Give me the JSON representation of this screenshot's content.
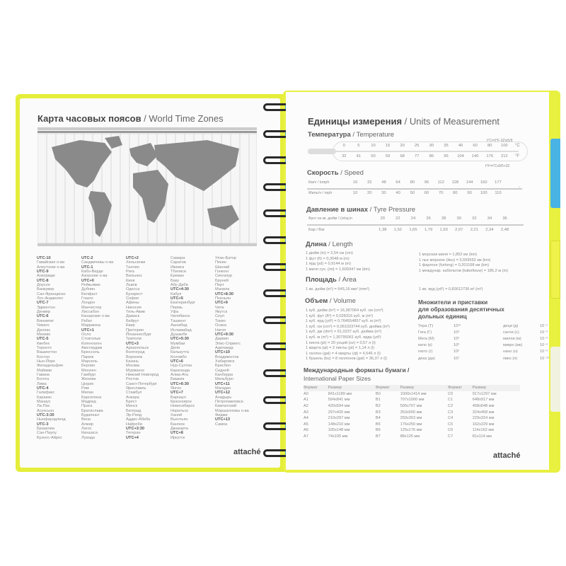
{
  "colors": {
    "cover": "#e4ee3a",
    "tab_blue": "#49b3e6",
    "tab_yellow": "#eef24a",
    "tab_light": "#f1f2e0",
    "spiral": "#2a2a2a"
  },
  "left": {
    "title_ru": "Карта часовых поясов",
    "title_en": " / World Time Zones",
    "zone_columns": [
      [
        "UTC-10",
        "Гавайские о-ва",
        "Алеутские о-ва",
        "UTC-9",
        "Анкоридж",
        "UTC-8",
        "Доусон",
        "Ванкувер",
        "Сан-Франциско",
        "Лос-Анджелес",
        "UTC-7",
        "Эдмонтон",
        "Денвер",
        "UTC-6",
        "Виннипег",
        "Чикаго",
        "Даллас",
        "Мехико",
        "UTC-5",
        "Квебек",
        "Торонто",
        "Вашингтон",
        "Бостон",
        "Нью-Йорк",
        "Филадельфия",
        "Майами",
        "Гавана",
        "Богота",
        "Лима",
        "UTC-4",
        "Галифакс",
        "Каракас",
        "Манаус",
        "Ла-Пас",
        "Асунсьон",
        "UTC-3:30",
        "Ньюфаундленд",
        "UTC-3",
        "Бразилиа",
        "Сан-Паулу",
        "Буэнос-Айрес"
      ],
      [
        "UTC-2",
        "Сандвичевы о-ва",
        "UTC-1",
        "Кабо-Верде",
        "Азорские о-ва",
        "UTC+0",
        "Рейкьявик",
        "Дублин",
        "Белфаст",
        "Глазго",
        "Лондон",
        "Манчестер",
        "Лиссабон",
        "Канарские о-ва",
        "Рабат",
        "Марракеш",
        "UTC+1",
        "Осло",
        "Стокгольм",
        "Копенгаген",
        "Амстердам",
        "Брюссель",
        "Париж",
        "Марсель",
        "Берлин",
        "Мюнхен",
        "Гамбург",
        "Женева",
        "Цюрих",
        "Рим",
        "Милан",
        "Барселона",
        "Мадрид",
        "Прага",
        "Братислава",
        "Будапешт",
        "Вена",
        "Алжир",
        "Лагос",
        "Киншаса",
        "Луанда"
      ],
      [
        "UTC+2",
        "Хельсинки",
        "Таллин",
        "Рига",
        "Вильнюс",
        "Киев",
        "Львов",
        "Одесса",
        "Бухарест",
        "София",
        "Афины",
        "Никосия",
        "Тель-Авив",
        "Дамаск",
        "Бейрут",
        "Каир",
        "Претория",
        "Йоханнесбург",
        "Триполи",
        "UTC+3",
        "Архангельск",
        "Волгоград",
        "Воронеж",
        "Казань",
        "Москва",
        "Мурманск",
        "Нижний Новгород",
        "Ростов",
        "Санкт-Петербург",
        "Ярославль",
        "Стамбул",
        "Анкара",
        "Брест",
        "Минск",
        "Белград",
        "Эр-Рияд",
        "Аддис-Абеба",
        "Найроби",
        "UTC+3:30",
        "Тегеран",
        "UTC+4"
      ],
      [
        "Самара",
        "Саратов",
        "Ижевск",
        "Тбилиси",
        "Ереван",
        "Баку",
        "Абу-Даби",
        "UTC+4:30",
        "Кабул",
        "UTC+5",
        "Екатеринбург",
        "Пермь",
        "Уфа",
        "Челябинск",
        "Ташкент",
        "Ашхабад",
        "Исламабад",
        "Душанбе",
        "UTC+5:30",
        "Мумбаи",
        "Дели",
        "Калькутта",
        "Коломбо",
        "UTC+6",
        "Нур-Султан",
        "Караганда",
        "Алма-Ата",
        "Бишкек",
        "UTC+6:30",
        "Янгон",
        "UTC+7",
        "Барнаул",
        "Красноярск",
        "Новосибирск",
        "Норильск",
        "Ханой",
        "Вьентьян",
        "Бангкок",
        "Джакарта",
        "UTC+8",
        "Иркутск"
      ],
      [
        "Улан-Батор",
        "Пекин",
        "Шанхай",
        "Гонконг",
        "Сингапур",
        "Бруней",
        "Перт",
        "Манила",
        "UTC+8:30",
        "Пхеньян",
        "UTC+9",
        "Чита",
        "Якутск",
        "Сеул",
        "Токио",
        "Осака",
        "Нагоя",
        "UTC+9:30",
        "Дарвин",
        "Элис-Спрингс",
        "Аделаида",
        "UTC+10",
        "Владивосток",
        "Хабаровск",
        "Брисбен",
        "Сидней",
        "Канберра",
        "Мельбурн",
        "UTC+11",
        "Магадан",
        "UTC+12",
        "Анадырь",
        "Петропавловск-",
        "Камчатский",
        "Маршалловы о-ва",
        "Фиджи",
        "UTC+13",
        "Самоа"
      ]
    ],
    "logo": "attaché"
  },
  "right": {
    "title_ru": "Единицы измерения",
    "title_en": " / Units of Measurement",
    "temperature": {
      "label_ru": "Температура",
      "label_en": " / Temperature",
      "formula_c": "t°C=(t°F-32)x5/9",
      "formula_f": "t°F=t°Cx9/5+32",
      "unit_c": "°C",
      "unit_f": "°F",
      "celsius": [
        "0",
        "5",
        "10",
        "15",
        "20",
        "25",
        "30",
        "35",
        "40",
        "60",
        "80",
        "100"
      ],
      "fahrenheit": [
        "32",
        "41",
        "50",
        "59",
        "68",
        "77",
        "86",
        "95",
        "104",
        "140",
        "176",
        "212"
      ]
    },
    "speed": {
      "label_ru": "Скорость",
      "label_en": " / Speed",
      "row1_label": "Км/ч / kmph",
      "row2_label": "Миль/ч / mph",
      "kmph": [
        "16",
        "32",
        "48",
        "64",
        "80",
        "96",
        "112",
        "128",
        "144",
        "160",
        "177"
      ],
      "mph": [
        "10",
        "20",
        "30",
        "40",
        "50",
        "60",
        "70",
        "80",
        "90",
        "100",
        "110"
      ]
    },
    "tyre": {
      "label_ru": "Давление в шинах",
      "label_en": " / Tyre Pressure",
      "row1_label": "Фунт на кв. дюйм / Lb/sq.in",
      "row2_label": "Бар / Bar",
      "psi": [
        "20",
        "22",
        "24",
        "26",
        "28",
        "30",
        "32",
        "34",
        "36"
      ],
      "bar": [
        "1,38",
        "1,52",
        "1,65",
        "1,79",
        "1,93",
        "2,07",
        "2,21",
        "2,34",
        "2,48"
      ]
    },
    "length": {
      "label_ru": "Длина",
      "label_en": " / Length",
      "left": [
        "1 дюйм (in) = 2,54 см (cm)",
        "1 фут (ft) = 0,3048 м (m)",
        "1 ярд (yd) = 0,9144 м (m)",
        "1 миля сух. (mi) = 1,609347 км (km)"
      ],
      "right": [
        "1 морская миля = 1,852 км (km)",
        "1 лье морское (lieu) = 5,559552 км (km)",
        "1 фарлонг (furlong) = 0,201168 км (km)",
        "1 междунар. кабельтов (kabeltouw) = 185,2 м (m)"
      ]
    },
    "area": {
      "label_ru": "Площадь",
      "label_en": " / Area",
      "left": "1 кв. дюйм (in²) = 645,16 мм² (mm²)",
      "right": "1 кв. ярд (yd²) = 0,83612736 м² (m²)"
    },
    "volume": {
      "label_ru": "Объем",
      "label_en": " / Volume",
      "lines": [
        "1 куб. дюйм (in³) = 16,387064 куб. см (cm³)",
        "1 куб. фут (ft³) = 0,028316 куб. м (m³)",
        "1 куб. ярд (yd³) = 0,764554857 куб. м (m³)",
        "1 куб. см (cm³) = 0,061023744 куб. дюйма (in³)",
        "1 куб. дм (dm³) = 61,0237 куб. дюйма (in³)",
        "1 куб. м (m³) = 1,30795061 куб. ярда (yd³)",
        "1 пинта (pt) = 20 унций (oz) = 0,57 л (l)",
        "1 кварта (qt) = 2 пинты (pt) = 1,14 л (l)",
        "1 галлон (gal) = 4 кварты (qt) = 4,546 л (l)",
        "1 бушель (bu) = 8 галлонов (gal) = 36,37 л (l)"
      ]
    },
    "multipliers": {
      "title_lines": [
        "Множители и приставки",
        "для образования десятичных",
        "дольных единиц"
      ],
      "rows": [
        [
          "Тера (Т)",
          "10¹²",
          "деци (д)",
          "10⁻¹"
        ],
        [
          "Гига (Г)",
          "10⁹",
          "санти (с)",
          "10⁻²"
        ],
        [
          "Мега (М)",
          "10⁶",
          "милли (м)",
          "10⁻³"
        ],
        [
          "кило (к)",
          "10³",
          "микро (мк)",
          "10⁻⁶"
        ],
        [
          "гекто (г)",
          "10²",
          "нано (н)",
          "10⁻⁹"
        ],
        [
          "дека (да)",
          "10¹",
          "пико (п)",
          "10⁻¹²"
        ]
      ]
    },
    "paper": {
      "title_ru": "Международные форматы бумаги /",
      "title_en": "International Paper Sizes",
      "headers": [
        "Формат",
        "Размер",
        "Формат",
        "Размер",
        "Формат",
        "Размер"
      ],
      "rows": [
        [
          "A0",
          "841x1189 мм",
          "B0",
          "1000x1414 мм",
          "C0",
          "917x1297 мм"
        ],
        [
          "A1",
          "594x841 мм",
          "B1",
          "707x1000 мм",
          "C1",
          "648x917 мм"
        ],
        [
          "A2",
          "420x594 мм",
          "B2",
          "500x707 мм",
          "C2",
          "458x648 мм"
        ],
        [
          "A3",
          "297x420 мм",
          "B3",
          "353x500 мм",
          "C3",
          "324x458 мм"
        ],
        [
          "A4",
          "210x297 мм",
          "B4",
          "250x353 мм",
          "C4",
          "229x324 мм"
        ],
        [
          "A5",
          "148x210 мм",
          "B5",
          "176x250 мм",
          "C5",
          "162x229 мм"
        ],
        [
          "A6",
          "105x148 мм",
          "B6",
          "125x176 мм",
          "C6",
          "114x162 мм"
        ],
        [
          "A7",
          "74x105 мм",
          "B7",
          "88x125 мм",
          "C7",
          "81x114 мм"
        ]
      ]
    },
    "logo": "attaché"
  }
}
